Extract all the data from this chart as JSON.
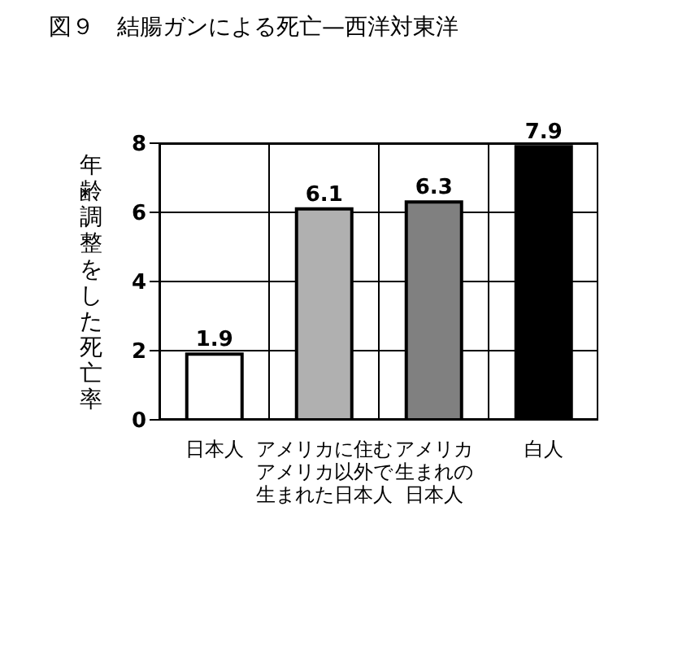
{
  "chart_data": {
    "type": "bar",
    "title": "図９　結腸ガンによる死亡—西洋対東洋",
    "ylabel": "年齢調整をした死亡率",
    "categories": [
      "日本人",
      "アメリカに住むアメリカ以外で生まれた日本人",
      "アメリカ生まれの日本人",
      "白人"
    ],
    "values": [
      1.9,
      6.1,
      6.3,
      7.9
    ],
    "colors": [
      "#ffffff",
      "#b0b0b0",
      "#808080",
      "#000000"
    ],
    "ylim": [
      0,
      8
    ],
    "yticks": [
      0,
      2,
      4,
      6,
      8
    ],
    "grid": true,
    "data_labels": true
  }
}
